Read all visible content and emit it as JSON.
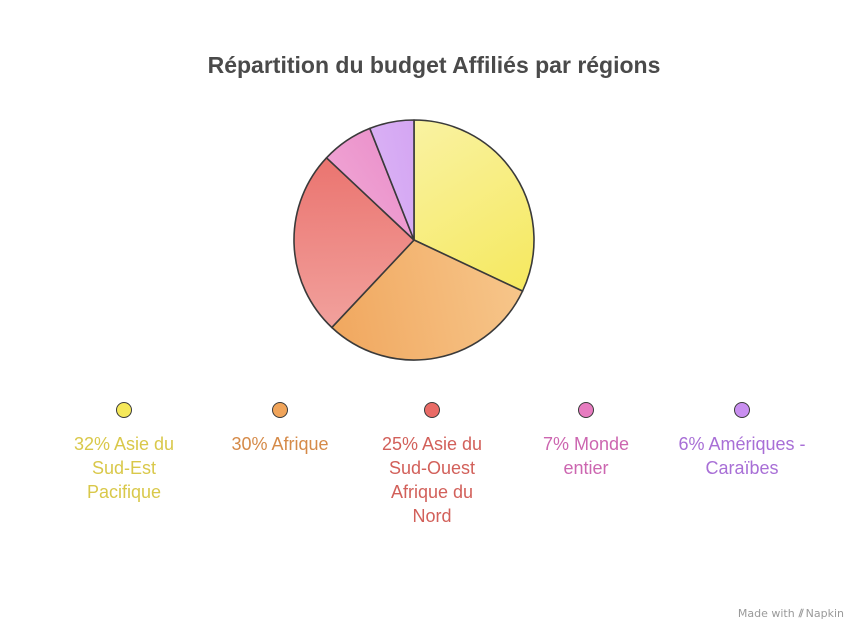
{
  "chart_data": {
    "type": "pie",
    "title": "Répartition du budget Affiliés par régions",
    "slices": [
      {
        "label": "32% Asie du Sud-Est Pacifique",
        "value": 32,
        "color": "#f5e85a",
        "label_color": "#d9c84a",
        "light": "#faf3a8"
      },
      {
        "label": "30% Afrique",
        "value": 30,
        "color": "#f0a45a",
        "label_color": "#d58a48",
        "light": "#f7c98f"
      },
      {
        "label": "25% Asie du Sud-Ouest Afrique du Nord",
        "value": 25,
        "color": "#e96b66",
        "label_color": "#d2605a",
        "light": "#f3aaa6"
      },
      {
        "label": "7% Monde entier",
        "value": 7,
        "color": "#e77cc0",
        "label_color": "#cc66b0",
        "light": "#f3b8de"
      },
      {
        "label": "6% Amériques - Caraïbes",
        "value": 6,
        "color": "#c98ff0",
        "label_color": "#a86fd6",
        "light": "#e4c6f7"
      }
    ]
  },
  "watermark": {
    "prefix": "Made with",
    "brand": "Napkin"
  }
}
